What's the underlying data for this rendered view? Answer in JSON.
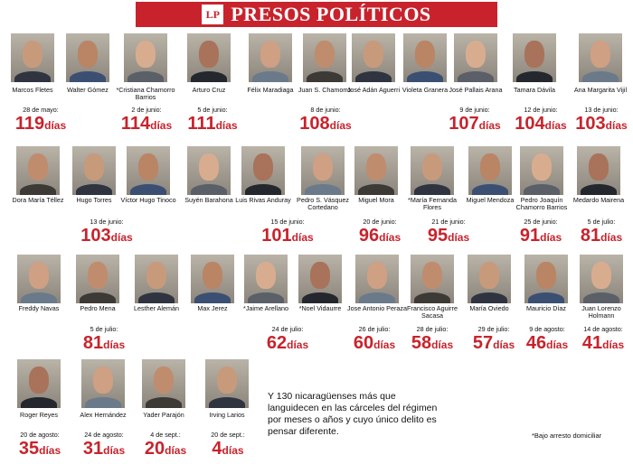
{
  "header": {
    "logo": "LP",
    "title": "PRESOS POLÍTICOS",
    "color": "#c8232c"
  },
  "people": [
    {
      "name": "Marcos Fletes"
    },
    {
      "name": "Walter Gómez"
    },
    {
      "name": "*Cristiana Chamorro Barrios"
    },
    {
      "name": "Arturo Cruz"
    },
    {
      "name": "Félix Maradiaga"
    },
    {
      "name": "Juan S. Chamorro"
    },
    {
      "name": "José Adán Aguerri"
    },
    {
      "name": "Violeta Granera"
    },
    {
      "name": "José Pallais Arana"
    },
    {
      "name": "Tamara Dávila"
    },
    {
      "name": "Ana Margarita Vijil"
    },
    {
      "name": "Dora María Téllez"
    },
    {
      "name": "Hugo Torres"
    },
    {
      "name": "Víctor Hugo Tinoco"
    },
    {
      "name": "Suyén Barahona"
    },
    {
      "name": "Luis Rivas Anduray"
    },
    {
      "name": "Pedro S. Vásquez Cortedano"
    },
    {
      "name": "Miguel Mora"
    },
    {
      "name": "*María Fernanda Flores"
    },
    {
      "name": "Miguel Mendoza"
    },
    {
      "name": "Pedro Joaquín Chamorro Barrios"
    },
    {
      "name": "Medardo Mairena"
    },
    {
      "name": "Freddy Navas"
    },
    {
      "name": "Pedro Mena"
    },
    {
      "name": "Lesther Alemán"
    },
    {
      "name": "Max Jerez"
    },
    {
      "name": "*Jaime Arellano"
    },
    {
      "name": "*Noel Vidaurre"
    },
    {
      "name": "Jose Antonio Peraza"
    },
    {
      "name": "Francisco Aguirre Sacasa"
    },
    {
      "name": "María Oviedo"
    },
    {
      "name": "Mauricio Díaz"
    },
    {
      "name": "Juan Lorenzo Holmann"
    },
    {
      "name": "Roger Reyes"
    },
    {
      "name": "Alex Hernández"
    },
    {
      "name": "Yader Parajón"
    },
    {
      "name": "Irving Larios"
    }
  ],
  "groups": [
    {
      "date": "28 de mayo:",
      "days": "119",
      "unit": "días"
    },
    {
      "date": "2 de junio:",
      "days": "114",
      "unit": "días"
    },
    {
      "date": "5 de junio:",
      "days": "111",
      "unit": "días"
    },
    {
      "date": "8 de junio:",
      "days": "108",
      "unit": "días"
    },
    {
      "date": "9 de junio:",
      "days": "107",
      "unit": "días"
    },
    {
      "date": "12 de junio:",
      "days": "104",
      "unit": "días"
    },
    {
      "date": "13 de junio:",
      "days": "103",
      "unit": "días"
    },
    {
      "date": "13 de junio:",
      "days": "103",
      "unit": "días"
    },
    {
      "date": "15 de junio:",
      "days": "101",
      "unit": "días"
    },
    {
      "date": "20 de junio:",
      "days": "96",
      "unit": "días"
    },
    {
      "date": "21 de junio:",
      "days": "95",
      "unit": "días"
    },
    {
      "date": "25 de junio:",
      "days": "91",
      "unit": "días"
    },
    {
      "date": "5 de julio:",
      "days": "81",
      "unit": "días"
    },
    {
      "date": "5 de julio:",
      "days": "81",
      "unit": "días"
    },
    {
      "date": "24 de julio:",
      "days": "62",
      "unit": "días"
    },
    {
      "date": "26 de julio:",
      "days": "60",
      "unit": "días"
    },
    {
      "date": "28 de julio:",
      "days": "58",
      "unit": "días"
    },
    {
      "date": "29 de julio:",
      "days": "57",
      "unit": "días"
    },
    {
      "date": "9 de agosto:",
      "days": "46",
      "unit": "días"
    },
    {
      "date": "14 de agosto:",
      "days": "41",
      "unit": "días"
    },
    {
      "date": "20 de agosto:",
      "days": "35",
      "unit": "días"
    },
    {
      "date": "24 de agosto:",
      "days": "31",
      "unit": "días"
    },
    {
      "date": "4 de sept.:",
      "days": "20",
      "unit": "días"
    },
    {
      "date": "20 de sept.:",
      "days": "4",
      "unit": "días"
    }
  ],
  "note": "Y 130 nicaragüenses más que languidecen en las cárceles del régimen por meses o años y cuyo único delito es pensar diferente.",
  "footnote": "*Bajo arresto domiciliar"
}
